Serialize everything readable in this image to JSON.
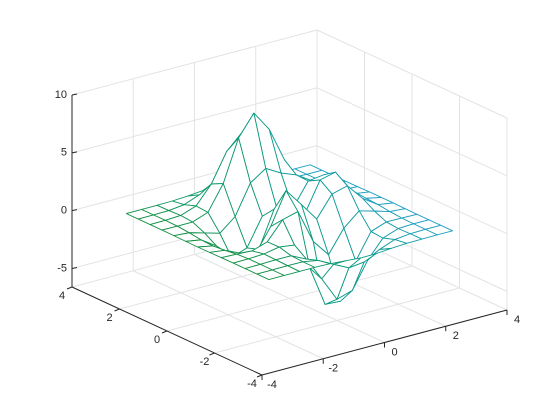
{
  "chart_data": {
    "type": "mesh",
    "x": [
      -3,
      -2.5,
      -2,
      -1.5,
      -1,
      -0.5,
      0,
      0.5,
      1,
      1.5,
      2,
      2.5,
      3
    ],
    "y": [
      -3,
      -2.5,
      -2,
      -1.5,
      -1,
      -0.5,
      0,
      0.5,
      1,
      1.5,
      2,
      2.5,
      3
    ],
    "z": [
      [
        0,
        0,
        0,
        0,
        -0.03,
        -0.14,
        -0.24,
        -0.22,
        -0.11,
        -0.03,
        -0.01,
        0,
        0
      ],
      [
        0,
        0,
        0.02,
        0,
        -0.23,
        -0.91,
        -1.57,
        -1.41,
        -0.69,
        -0.18,
        -0.03,
        0,
        0
      ],
      [
        0,
        0.01,
        0.05,
        0.05,
        -0.59,
        -2.64,
        -4.76,
        -4.35,
        -2.1,
        -0.53,
        -0.06,
        0,
        0
      ],
      [
        0,
        0.01,
        0.08,
        0.33,
        0.15,
        -2.19,
        -5.68,
        -5.76,
        -2.64,
        -0.44,
        0.04,
        0.03,
        0
      ],
      [
        -0.01,
        -0.06,
        -0.13,
        0.3,
        1.86,
        2.22,
        -0.72,
        -2.22,
        -0.27,
        0.88,
        0.5,
        0.11,
        0.01
      ],
      [
        -0.03,
        -0.2,
        -0.8,
        -1.21,
        0.8,
        3.55,
        2,
        0.39,
        2.2,
        2.56,
        1.12,
        0.24,
        0.03
      ],
      [
        -0.04,
        -0.3,
        -1.33,
        -2.77,
        -1.65,
        1.48,
        0.98,
        0.37,
        2.94,
        3.27,
        1.41,
        0.3,
        0.03
      ],
      [
        -0.03,
        -0.25,
        -1.12,
        -2.49,
        -2,
        0.39,
        0.46,
        0.38,
        2.38,
        2.56,
        1.1,
        0.23,
        0.03
      ],
      [
        -0.01,
        -0.11,
        -0.48,
        -0.86,
        0.23,
        2.79,
        3.69,
        2.94,
        2.43,
        1.58,
        0.58,
        0.11,
        0.01
      ],
      [
        0,
        -0.02,
        -0.01,
        0.47,
        2.61,
        6.2,
        8,
        6.25,
        3.25,
        1.19,
        0.29,
        0.05,
        0
      ],
      [
        0,
        0.01,
        0.08,
        0.55,
        2.1,
        4.56,
        5.86,
        4.57,
        2.21,
        0.68,
        0.13,
        0.02,
        0
      ],
      [
        0,
        0,
        0.03,
        0.19,
        0.69,
        1.47,
        1.88,
        1.47,
        0.7,
        0.21,
        0.04,
        0,
        0
      ],
      [
        0,
        0,
        0.01,
        0.03,
        0.11,
        0.23,
        0.3,
        0.23,
        0.11,
        0.03,
        0.01,
        0,
        0
      ]
    ],
    "xlim": [
      -4,
      4
    ],
    "ylim": [
      -4,
      4
    ],
    "zlim": [
      -6.6,
      10
    ],
    "xticks": [
      -4,
      -2,
      0,
      2,
      4
    ],
    "yticks": [
      -4,
      -2,
      0,
      2,
      4
    ],
    "zticks": [
      -5,
      0,
      5,
      10
    ],
    "grid": true,
    "colormap": [
      "#1a8c28",
      "#0a9c86",
      "#2aa0e0"
    ]
  }
}
